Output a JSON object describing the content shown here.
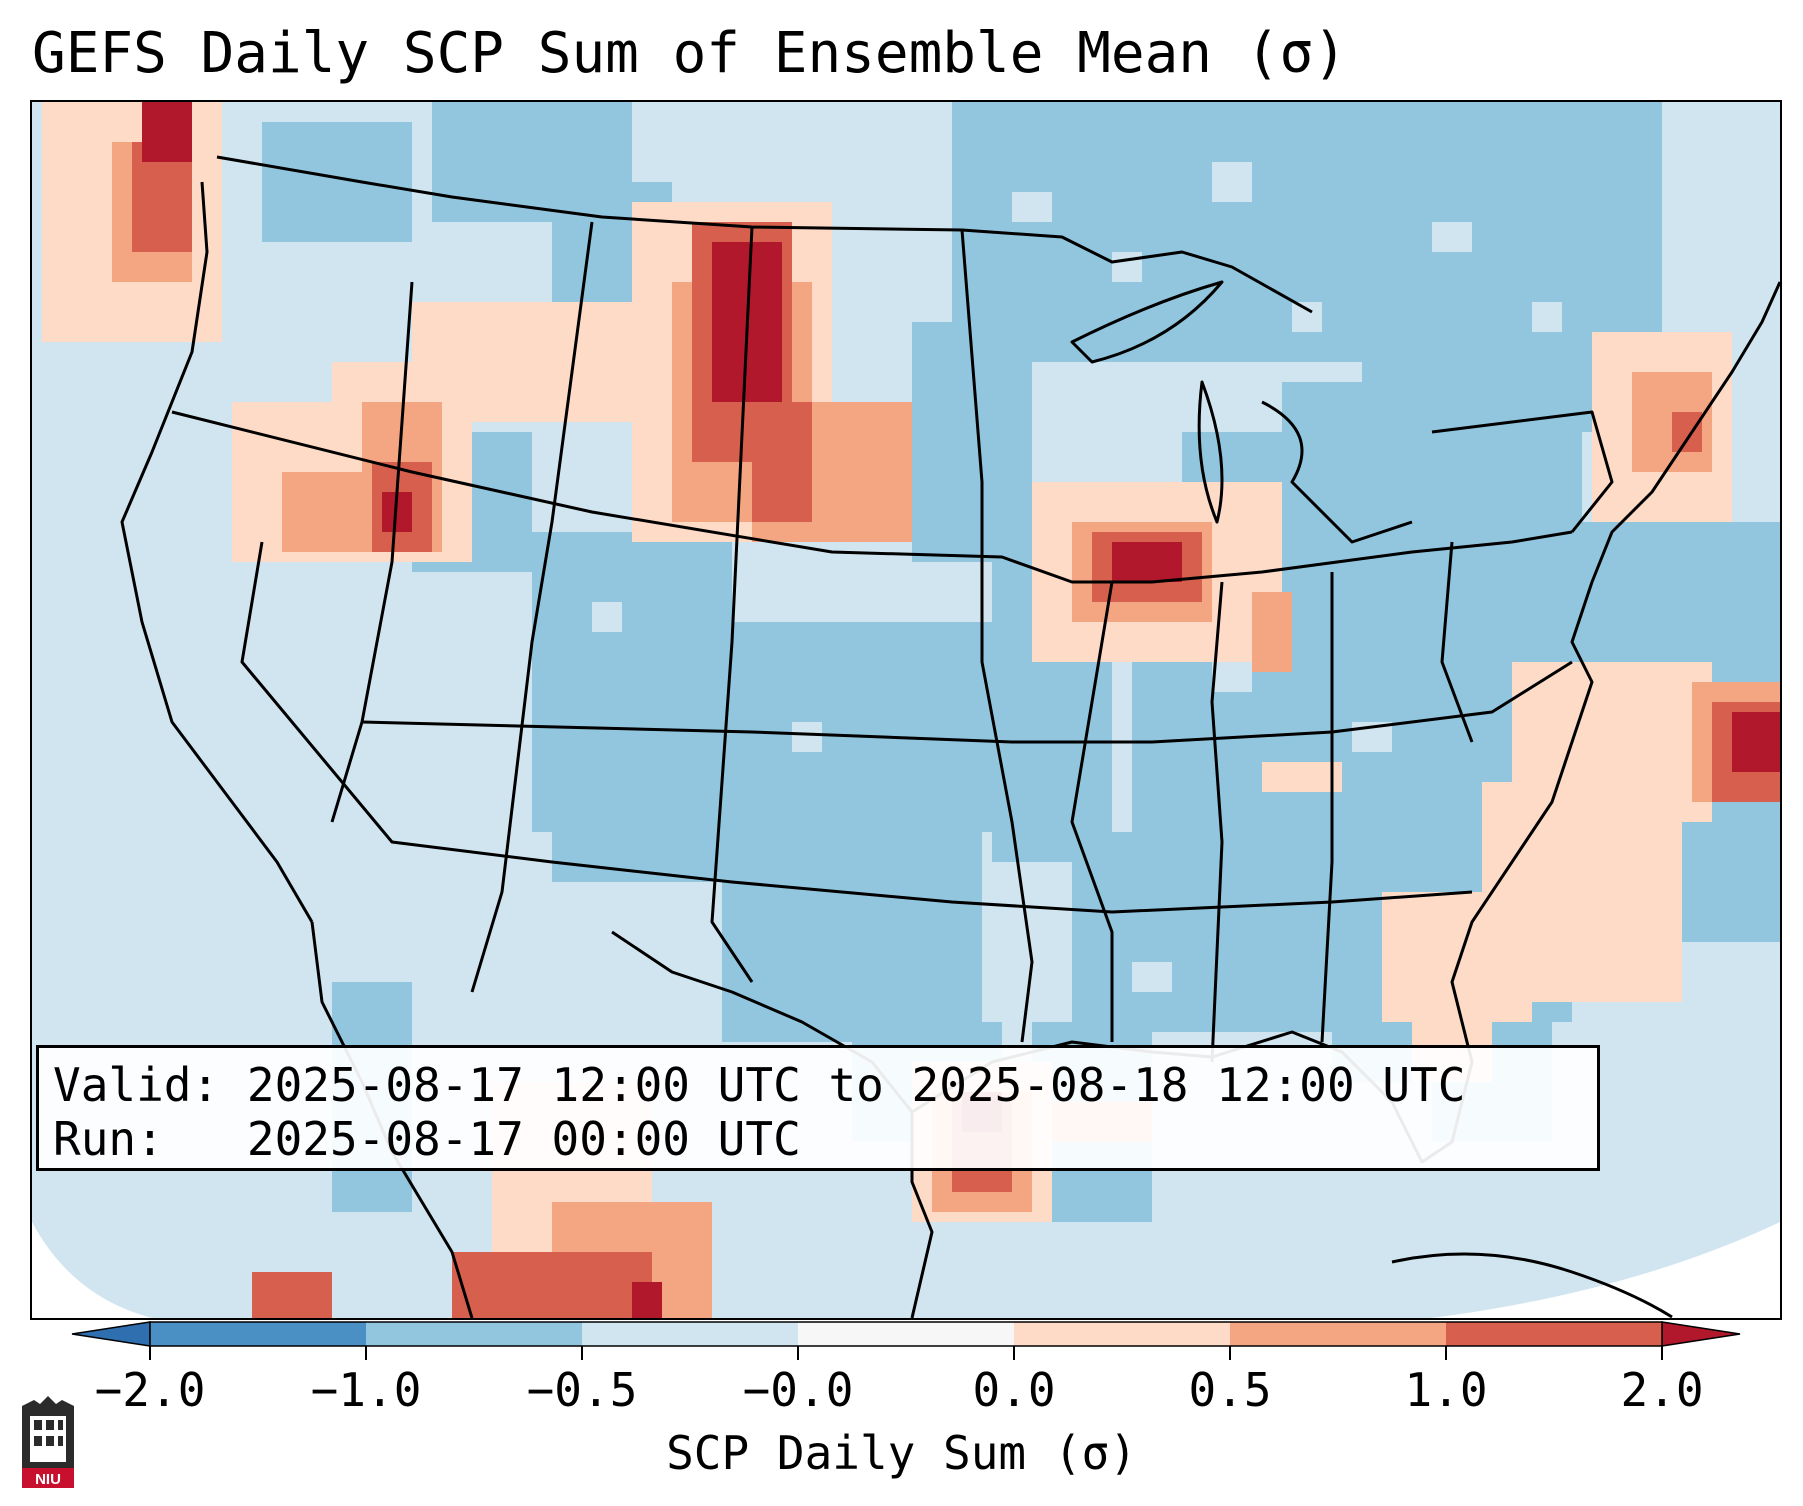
{
  "title": "GEFS Daily SCP Sum of Ensemble Mean (σ)",
  "info": {
    "valid_label": "Valid:",
    "valid_value": "2025-08-17 12:00 UTC to 2025-08-18 12:00 UTC",
    "run_label": "Run:",
    "run_value": "2025-08-17 00:00 UTC"
  },
  "colorbar": {
    "label": "SCP Daily Sum (σ)",
    "ticks": [
      "−2.0",
      "−1.0",
      "−0.5",
      "−0.0",
      "0.0",
      "0.5",
      "1.0",
      "2.0"
    ],
    "colors": [
      "#4a90c4",
      "#92c5de",
      "#d1e5f0",
      "#f7f7f7",
      "#fddbc7",
      "#f4a582",
      "#d6604d"
    ],
    "extend_low": "#2f6fb0",
    "extend_high": "#b2182b"
  },
  "logo": {
    "text": "NIU",
    "icon": "niu-logo-icon"
  },
  "map": {
    "background_value_color": "#d1e5f0",
    "features": [
      "US state boundaries",
      "coastlines",
      "Canada",
      "Mexico",
      "Gulf of Mexico",
      "Atlantic Ocean"
    ]
  }
}
